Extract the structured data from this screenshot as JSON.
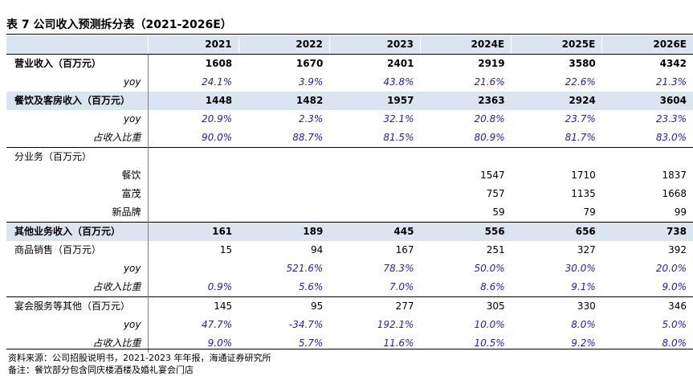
{
  "title": "表 7  公司收入预测拆分表（2021-2026E）",
  "years": [
    "2021",
    "2022",
    "2023",
    "2024E",
    "2025E",
    "2026E"
  ],
  "rows": [
    {
      "label": "营业收入（百万元）",
      "kind": "hdr",
      "values": [
        "1608",
        "1670",
        "2401",
        "2919",
        "3580",
        "4342"
      ]
    },
    {
      "label": "yoy",
      "kind": "yoy",
      "values": [
        "24.1%",
        "3.9%",
        "43.8%",
        "21.6%",
        "22.6%",
        "21.3%"
      ]
    },
    {
      "label": "餐饮及客房收入（百万元）",
      "kind": "hdr shade",
      "values": [
        "1448",
        "1482",
        "1957",
        "2363",
        "2924",
        "3604"
      ]
    },
    {
      "label": "yoy",
      "kind": "yoy",
      "values": [
        "20.9%",
        "2.3%",
        "32.1%",
        "20.8%",
        "23.7%",
        "23.3%"
      ]
    },
    {
      "label": "占收入比重",
      "kind": "yoy",
      "values": [
        "90.0%",
        "88.7%",
        "81.5%",
        "80.9%",
        "81.7%",
        "83.0%"
      ]
    },
    {
      "label": "分业务（百万元）",
      "kind": "plain sep",
      "values": [
        "",
        "",
        "",
        "",
        "",
        ""
      ]
    },
    {
      "label": "餐饮",
      "kind": "sub",
      "values": [
        "",
        "",
        "",
        "1547",
        "1710",
        "1837"
      ]
    },
    {
      "label": "富茂",
      "kind": "sub",
      "values": [
        "",
        "",
        "",
        "757",
        "1135",
        "1668"
      ]
    },
    {
      "label": "新品牌",
      "kind": "sub",
      "values": [
        "",
        "",
        "",
        "59",
        "79",
        "99"
      ]
    },
    {
      "label": "其他业务收入（百万元）",
      "kind": "hdr shade sep",
      "values": [
        "161",
        "189",
        "445",
        "556",
        "656",
        "738"
      ]
    },
    {
      "label": "商品销售（百万元）",
      "kind": "plain",
      "values": [
        "15",
        "94",
        "167",
        "251",
        "327",
        "392"
      ]
    },
    {
      "label": "yoy",
      "kind": "yoy",
      "values": [
        "",
        "521.6%",
        "78.3%",
        "50.0%",
        "30.0%",
        "20.0%"
      ]
    },
    {
      "label": "占收入比重",
      "kind": "yoy",
      "values": [
        "0.9%",
        "5.6%",
        "7.0%",
        "8.6%",
        "9.1%",
        "9.0%"
      ]
    },
    {
      "label": "宴会服务等其他（百万元）",
      "kind": "plain sep",
      "values": [
        "145",
        "95",
        "277",
        "305",
        "330",
        "346"
      ]
    },
    {
      "label": "yoy",
      "kind": "yoy",
      "values": [
        "47.7%",
        "-34.7%",
        "192.1%",
        "10.0%",
        "8.0%",
        "5.0%"
      ]
    },
    {
      "label": "占收入比重",
      "kind": "yoy",
      "values": [
        "9.0%",
        "5.7%",
        "11.6%",
        "10.5%",
        "9.2%",
        "8.0%"
      ]
    }
  ],
  "source": "资料来源：公司招股说明书，2021-2023 年年报，海通证券研究所",
  "note": "备注：餐饮部分包含同庆楼酒楼及婚礼宴会门店"
}
